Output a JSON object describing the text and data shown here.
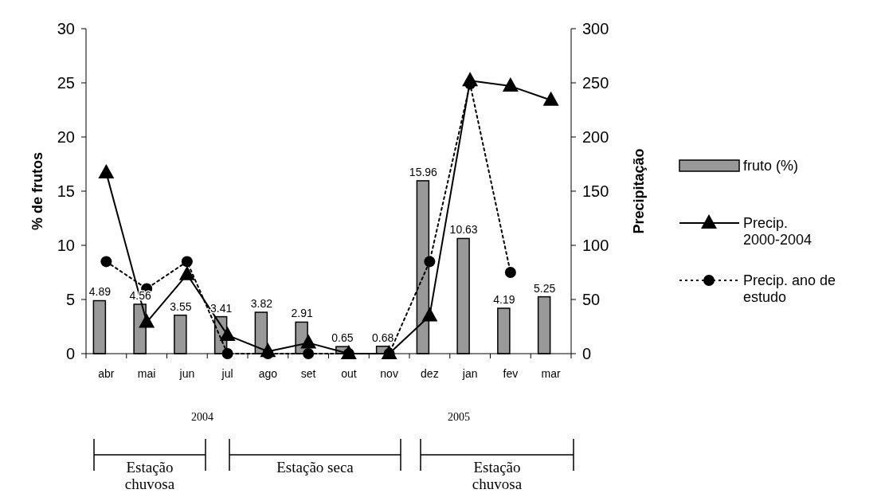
{
  "chart_data": {
    "type": "bar",
    "ylabel": "% de frutos",
    "y2label": "Precipitação",
    "categories": [
      "abr",
      "mai",
      "jun",
      "jul",
      "ago",
      "set",
      "out",
      "nov",
      "dez",
      "jan",
      "fev",
      "mar"
    ],
    "series": [
      {
        "name": "fruto (%)",
        "color": "#999999",
        "values": [
          4.89,
          4.56,
          3.55,
          3.41,
          3.82,
          2.91,
          0.65,
          0.68,
          15.96,
          10.63,
          4.19,
          5.25
        ],
        "value_labels": [
          "4.89",
          "4.56",
          "3.55",
          "3.41",
          "3.82",
          "2.91",
          "0.65",
          "0.68",
          "15.96",
          "10.63",
          "4.19",
          "5.25"
        ]
      },
      {
        "name": "Precip. 2000-2004",
        "type": "line",
        "axis": "y2",
        "color": "#000000",
        "marker": "triangle",
        "line_style": "solid",
        "values": [
          167,
          29,
          73,
          17,
          2,
          10,
          0,
          0,
          35,
          252,
          247,
          234
        ]
      },
      {
        "name": "Precip. ano de estudo",
        "type": "line",
        "axis": "y2",
        "color": "#000000",
        "marker": "circle",
        "line_style": "dotted",
        "values": [
          85,
          60,
          85,
          0,
          0,
          0,
          0,
          0,
          85,
          249,
          75,
          null
        ]
      }
    ],
    "ylim": [
      0,
      30
    ],
    "yticks": [
      0,
      5,
      10,
      15,
      20,
      25,
      30
    ],
    "y2lim": [
      0,
      300
    ],
    "y2ticks": [
      0,
      50,
      100,
      150,
      200,
      250,
      300
    ],
    "legend": "right",
    "annotations": [
      "2004",
      "2005",
      "Estação chuvosa",
      "Estação seca",
      "Estação chuvosa"
    ]
  }
}
